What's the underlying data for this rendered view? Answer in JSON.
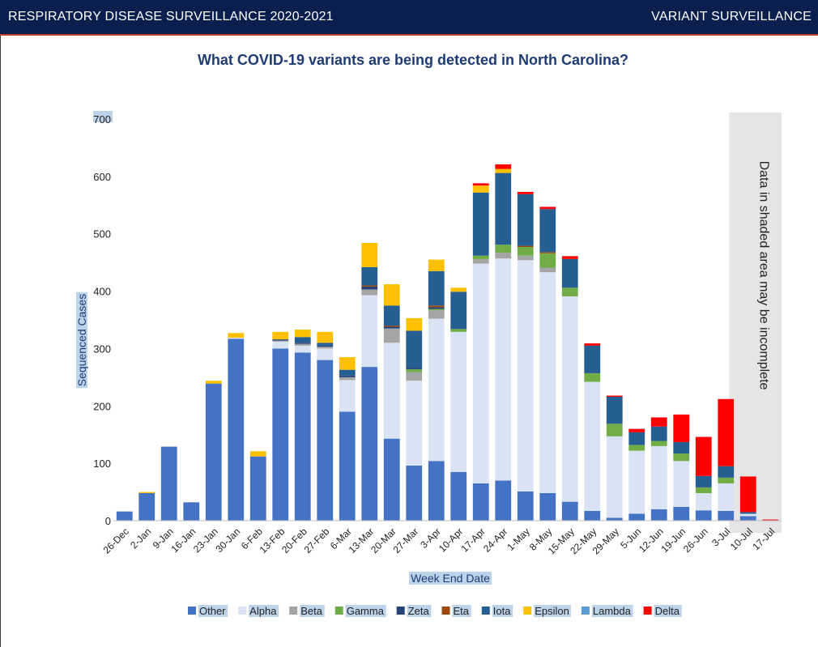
{
  "header": {
    "left_title": "RESPIRATORY DISEASE SURVEILLANCE 2020-2021",
    "right_title": "VARIANT SURVEILLANCE"
  },
  "chart_data": {
    "type": "bar",
    "stacked": true,
    "title": "What COVID-19 variants are being detected in North Carolina?",
    "xlabel": "Week End Date",
    "ylabel": "Sequenced Cases",
    "ylim": [
      0,
      700
    ],
    "yticks": [
      0,
      100,
      200,
      300,
      400,
      500,
      600,
      700
    ],
    "grid": false,
    "legend_position": "bottom",
    "shaded_note": "Data in shaded area may be incomplete",
    "shaded_from_category": "10-Jul",
    "categories": [
      "26-Dec",
      "2-Jan",
      "9-Jan",
      "16-Jan",
      "23-Jan",
      "30-Jan",
      "6-Feb",
      "13-Feb",
      "20-Feb",
      "27-Feb",
      "6-Mar",
      "13-Mar",
      "20-Mar",
      "27-Mar",
      "3-Apr",
      "10-Apr",
      "17-Apr",
      "24-Apr",
      "1-May",
      "8-May",
      "15-May",
      "22-May",
      "29-May",
      "5-Jun",
      "12-Jun",
      "19-Jun",
      "26-Jun",
      "3-Jul",
      "10-Jul",
      "17-Jul"
    ],
    "series": [
      {
        "name": "Other",
        "color": "#4472c4",
        "values": [
          16,
          48,
          129,
          32,
          239,
          317,
          112,
          300,
          293,
          280,
          190,
          268,
          143,
          96,
          104,
          85,
          65,
          70,
          51,
          48,
          33,
          17,
          5,
          12,
          20,
          24,
          18,
          17,
          8,
          0
        ]
      },
      {
        "name": "Alpha",
        "color": "#dae3f3",
        "values": [
          0,
          0,
          0,
          0,
          0,
          2,
          0,
          12,
          12,
          20,
          55,
          125,
          167,
          148,
          248,
          244,
          383,
          387,
          403,
          385,
          358,
          225,
          142,
          110,
          110,
          80,
          30,
          48,
          4,
          0
        ]
      },
      {
        "name": "Beta",
        "color": "#a5a5a5",
        "values": [
          0,
          0,
          0,
          0,
          0,
          0,
          0,
          2,
          3,
          3,
          5,
          10,
          25,
          15,
          15,
          0,
          8,
          10,
          8,
          8,
          0,
          0,
          0,
          0,
          0,
          0,
          0,
          0,
          0,
          0
        ]
      },
      {
        "name": "Gamma",
        "color": "#70ad47",
        "values": [
          0,
          0,
          0,
          0,
          0,
          0,
          0,
          0,
          0,
          0,
          0,
          0,
          0,
          5,
          2,
          5,
          6,
          14,
          15,
          25,
          15,
          15,
          22,
          10,
          9,
          13,
          10,
          10,
          0,
          0
        ]
      },
      {
        "name": "Zeta",
        "color": "#264478",
        "values": [
          0,
          0,
          0,
          0,
          0,
          0,
          0,
          2,
          2,
          2,
          3,
          5,
          3,
          2,
          3,
          0,
          0,
          0,
          0,
          0,
          0,
          0,
          0,
          0,
          0,
          0,
          0,
          0,
          0,
          0
        ]
      },
      {
        "name": "Eta",
        "color": "#9e480e",
        "values": [
          0,
          0,
          0,
          0,
          0,
          0,
          0,
          0,
          0,
          0,
          0,
          2,
          2,
          0,
          3,
          0,
          0,
          0,
          2,
          2,
          0,
          0,
          0,
          0,
          0,
          0,
          0,
          0,
          0,
          0
        ]
      },
      {
        "name": "Iota",
        "color": "#255e91",
        "values": [
          0,
          0,
          0,
          0,
          0,
          0,
          0,
          0,
          10,
          5,
          10,
          32,
          35,
          65,
          60,
          65,
          110,
          125,
          90,
          75,
          50,
          48,
          47,
          22,
          25,
          20,
          20,
          20,
          3,
          0
        ]
      },
      {
        "name": "Epsilon",
        "color": "#ffc000",
        "values": [
          0,
          2,
          0,
          0,
          5,
          8,
          9,
          13,
          13,
          19,
          22,
          42,
          37,
          22,
          20,
          7,
          12,
          7,
          0,
          0,
          0,
          0,
          0,
          0,
          0,
          0,
          0,
          0,
          0,
          0
        ]
      },
      {
        "name": "Lambda",
        "color": "#5b9bd5",
        "values": [
          0,
          0,
          0,
          0,
          0,
          0,
          0,
          0,
          0,
          0,
          0,
          0,
          0,
          0,
          0,
          0,
          0,
          0,
          0,
          0,
          0,
          0,
          0,
          0,
          0,
          0,
          0,
          0,
          0,
          0
        ]
      },
      {
        "name": "Delta",
        "color": "#ff0000",
        "values": [
          0,
          0,
          0,
          0,
          0,
          0,
          0,
          0,
          0,
          0,
          0,
          0,
          0,
          0,
          0,
          0,
          4,
          8,
          4,
          4,
          5,
          4,
          2,
          6,
          16,
          48,
          68,
          117,
          62,
          2
        ]
      }
    ]
  }
}
